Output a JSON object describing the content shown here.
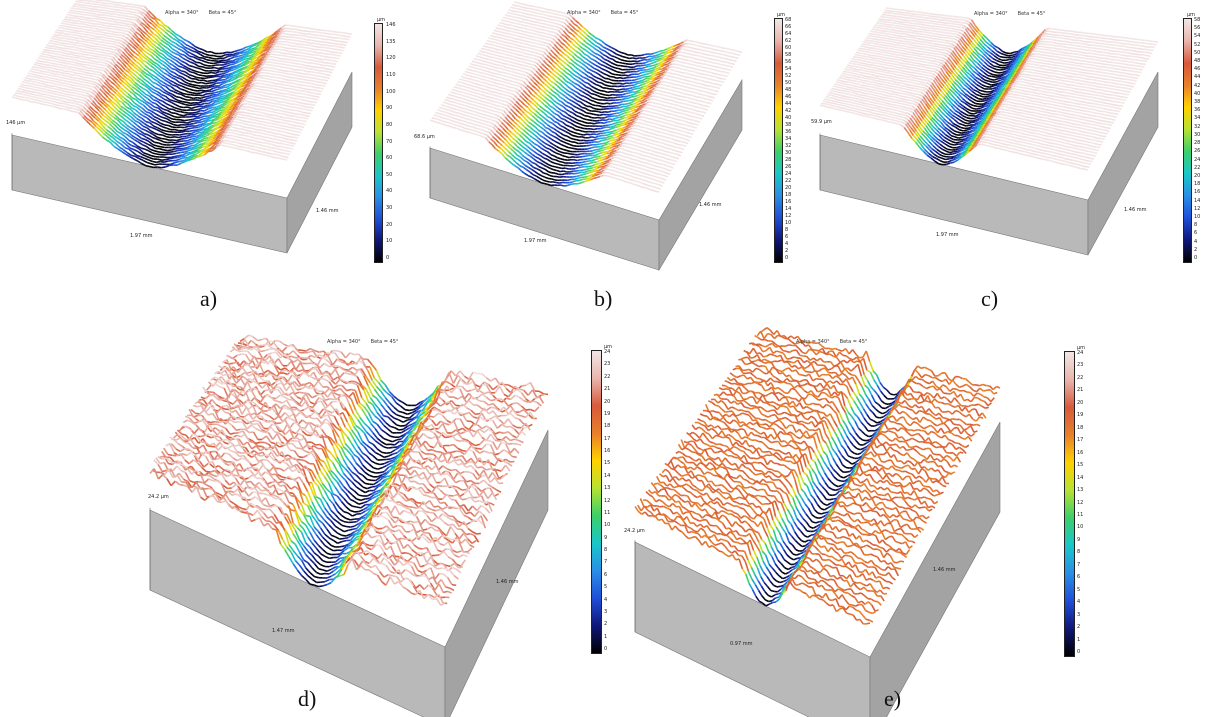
{
  "panels": [
    {
      "caption": "a)",
      "alpha": "Alpha = 340°",
      "beta": "Beta = 45°",
      "z_label": "146 µm",
      "x_label": "1.97 mm",
      "y_label": "1.46 mm",
      "unit": "µm",
      "ticks": [
        "146",
        "135",
        "120",
        "110",
        "100",
        "90",
        "80",
        "70",
        "60",
        "50",
        "40",
        "30",
        "20",
        "10",
        "0"
      ],
      "surface_style": "wide-valley"
    },
    {
      "caption": "b)",
      "alpha": "Alpha = 340°",
      "beta": "Beta = 45°",
      "z_label": "68.6 µm",
      "x_label": "1.97 mm",
      "y_label": "1.46 mm",
      "unit": "µm",
      "ticks": [
        "68",
        "66",
        "64",
        "62",
        "60",
        "58",
        "56",
        "54",
        "52",
        "50",
        "48",
        "46",
        "44",
        "42",
        "40",
        "38",
        "36",
        "34",
        "32",
        "30",
        "28",
        "26",
        "24",
        "22",
        "20",
        "18",
        "16",
        "14",
        "12",
        "10",
        "8",
        "6",
        "4",
        "2",
        "0"
      ],
      "surface_style": "wide-valley"
    },
    {
      "caption": "c)",
      "alpha": "Alpha = 340°",
      "beta": "Beta = 45°",
      "z_label": "59.9 µm",
      "x_label": "1.97 mm",
      "y_label": "1.46 mm",
      "unit": "µm",
      "ticks": [
        "58",
        "56",
        "54",
        "52",
        "50",
        "48",
        "46",
        "44",
        "42",
        "40",
        "38",
        "36",
        "34",
        "32",
        "30",
        "28",
        "26",
        "24",
        "22",
        "20",
        "18",
        "16",
        "14",
        "12",
        "10",
        "8",
        "6",
        "4",
        "2",
        "0"
      ],
      "surface_style": "narrow-valley"
    },
    {
      "caption": "d)",
      "alpha": "Alpha = 340°",
      "beta": "Beta = 45°",
      "z_label": "24.2 µm",
      "x_label": "1.47 mm",
      "y_label": "1.46 mm",
      "unit": "µm",
      "ticks": [
        "24",
        "23",
        "22",
        "21",
        "20",
        "19",
        "18",
        "17",
        "16",
        "15",
        "14",
        "13",
        "12",
        "11",
        "10",
        "9",
        "8",
        "7",
        "6",
        "5",
        "4",
        "3",
        "2",
        "1",
        "0"
      ],
      "surface_style": "rough-valley"
    },
    {
      "caption": "e)",
      "alpha": "Alpha = 340°",
      "beta": "Beta = 45°",
      "z_label": "24.2 µm",
      "x_label": "0.97 mm",
      "y_label": "1.46 mm",
      "unit": "µm",
      "ticks": [
        "24",
        "23",
        "22",
        "21",
        "20",
        "19",
        "18",
        "17",
        "16",
        "15",
        "14",
        "13",
        "12",
        "11",
        "10",
        "9",
        "8",
        "7",
        "6",
        "5",
        "4",
        "3",
        "2",
        "1",
        "0"
      ],
      "surface_style": "rough-orange"
    }
  ],
  "colors": {
    "box_front": "#b9b9b9",
    "box_side": "#a3a3a3",
    "plateau_pink": "#e9c6c3",
    "scale": [
      "#f2e6e6",
      "#e8b5ad",
      "#d85a3b",
      "#e8802c",
      "#ffd200",
      "#b7e233",
      "#3ccf6b",
      "#19c7c9",
      "#2a8fe6",
      "#1f4fd8",
      "#10177a",
      "#000000"
    ]
  }
}
